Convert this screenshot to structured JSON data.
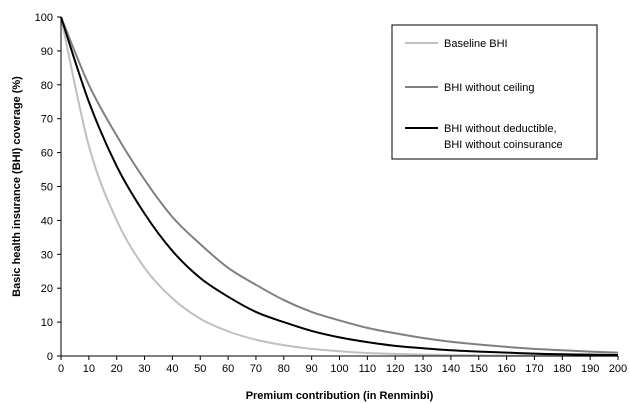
{
  "chart_data": {
    "type": "line",
    "xlabel": "Premium contribution (in Renminbi)",
    "ylabel": "Basic health insurance (BHI) coverage (%)",
    "xlim": [
      0,
      200
    ],
    "ylim": [
      0,
      100
    ],
    "x_ticks": [
      "0",
      "10",
      "20",
      "30",
      "40",
      "50",
      "60",
      "70",
      "80",
      "90",
      "100",
      "110",
      "120",
      "130",
      "140",
      "150",
      "160",
      "170",
      "180",
      "190",
      "200"
    ],
    "y_ticks": [
      "0",
      "10",
      "20",
      "30",
      "40",
      "50",
      "60",
      "70",
      "80",
      "90",
      "100"
    ],
    "grid": false,
    "legend_position": "top-right",
    "x": [
      0,
      10,
      20,
      30,
      40,
      50,
      60,
      70,
      80,
      90,
      100,
      110,
      120,
      130,
      140,
      150,
      160,
      170,
      180,
      190,
      200
    ],
    "series": [
      {
        "name": "Baseline BHI",
        "color": "#c0c0c0",
        "values": [
          100,
          62,
          40,
          26,
          17,
          11,
          7.3,
          4.8,
          3.2,
          2.1,
          1.4,
          0.9,
          0.6,
          0.4,
          0.3,
          0.2,
          0.1,
          0.1,
          0.1,
          0.0,
          0.0
        ]
      },
      {
        "name": "BHI without ceiling",
        "color": "#808080",
        "values": [
          100,
          80,
          65,
          52,
          41,
          33,
          26,
          21,
          16.5,
          13,
          10.5,
          8.3,
          6.7,
          5.3,
          4.2,
          3.4,
          2.7,
          2.1,
          1.7,
          1.3,
          1.0
        ]
      },
      {
        "name": "BHI without deductible,\nBHI without coinsurance",
        "name_lines": [
          "BHI without deductible,",
          "BHI without coinsurance"
        ],
        "color": "#000000",
        "values": [
          100,
          75,
          56,
          42,
          31,
          23,
          17.5,
          13,
          10,
          7.4,
          5.5,
          4.1,
          3.0,
          2.3,
          1.7,
          1.3,
          1.0,
          0.7,
          0.5,
          0.4,
          0.3
        ]
      }
    ]
  }
}
